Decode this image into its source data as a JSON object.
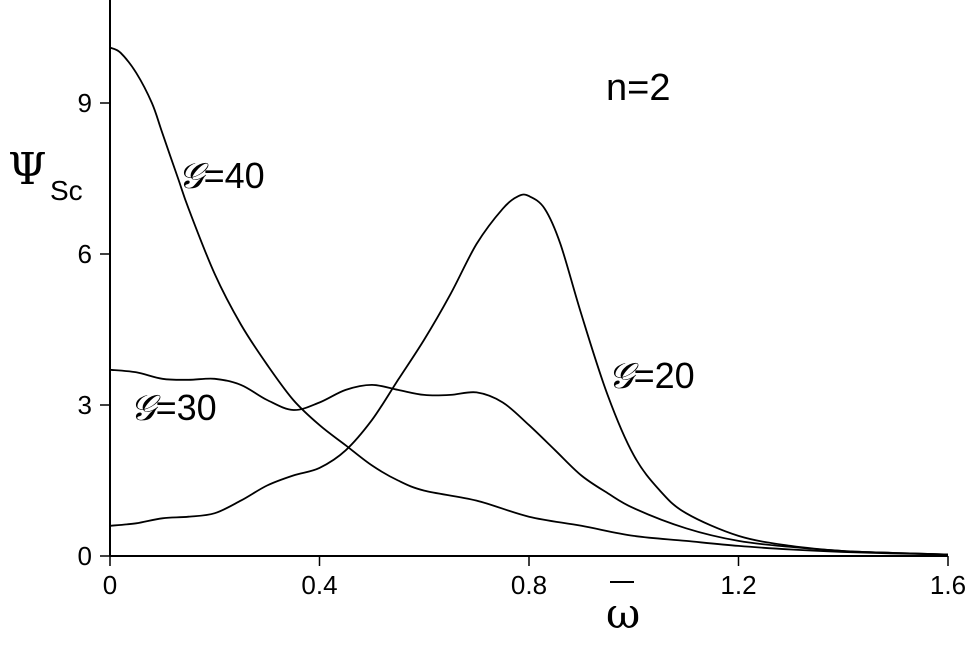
{
  "chart_data": {
    "type": "line",
    "xlabel": "ω",
    "ylabel_main": "Ψ",
    "ylabel_sub": "Sc",
    "annotation": "n=2",
    "xlim": [
      0,
      1.6
    ],
    "ylim": [
      0,
      11
    ],
    "xticks": [
      {
        "v": 0,
        "label": "0"
      },
      {
        "v": 0.4,
        "label": "0.4"
      },
      {
        "v": 0.8,
        "label": "0.8"
      },
      {
        "v": 1.2,
        "label": "1.2"
      },
      {
        "v": 1.6,
        "label": "1.6"
      }
    ],
    "yticks": [
      {
        "v": 0,
        "label": "0"
      },
      {
        "v": 3,
        "label": "3"
      },
      {
        "v": 6,
        "label": "6"
      },
      {
        "v": 9,
        "label": "9"
      }
    ],
    "series": [
      {
        "name": "G=40",
        "label_g": "𝒢",
        "label_val": "=40",
        "points": [
          [
            0,
            10.1
          ],
          [
            0.02,
            10.0
          ],
          [
            0.05,
            9.6
          ],
          [
            0.08,
            9.0
          ],
          [
            0.1,
            8.4
          ],
          [
            0.13,
            7.5
          ],
          [
            0.15,
            6.9
          ],
          [
            0.2,
            5.6
          ],
          [
            0.25,
            4.6
          ],
          [
            0.3,
            3.8
          ],
          [
            0.35,
            3.1
          ],
          [
            0.4,
            2.6
          ],
          [
            0.45,
            2.2
          ],
          [
            0.5,
            1.8
          ],
          [
            0.55,
            1.5
          ],
          [
            0.6,
            1.3
          ],
          [
            0.7,
            1.1
          ],
          [
            0.8,
            0.78
          ],
          [
            0.9,
            0.6
          ],
          [
            1.0,
            0.4
          ],
          [
            1.1,
            0.3
          ],
          [
            1.2,
            0.2
          ],
          [
            1.3,
            0.13
          ],
          [
            1.4,
            0.08
          ],
          [
            1.5,
            0.05
          ],
          [
            1.6,
            0.03
          ]
        ]
      },
      {
        "name": "G=30",
        "label_g": "𝒢",
        "label_val": "=30",
        "points": [
          [
            0,
            3.7
          ],
          [
            0.05,
            3.65
          ],
          [
            0.1,
            3.52
          ],
          [
            0.15,
            3.5
          ],
          [
            0.2,
            3.52
          ],
          [
            0.25,
            3.4
          ],
          [
            0.3,
            3.1
          ],
          [
            0.35,
            2.9
          ],
          [
            0.4,
            3.05
          ],
          [
            0.45,
            3.3
          ],
          [
            0.5,
            3.4
          ],
          [
            0.55,
            3.3
          ],
          [
            0.6,
            3.2
          ],
          [
            0.65,
            3.2
          ],
          [
            0.7,
            3.25
          ],
          [
            0.75,
            3.05
          ],
          [
            0.8,
            2.6
          ],
          [
            0.85,
            2.1
          ],
          [
            0.9,
            1.6
          ],
          [
            0.95,
            1.25
          ],
          [
            1.0,
            0.95
          ],
          [
            1.1,
            0.55
          ],
          [
            1.2,
            0.3
          ],
          [
            1.3,
            0.18
          ],
          [
            1.4,
            0.1
          ],
          [
            1.5,
            0.06
          ],
          [
            1.6,
            0.03
          ]
        ]
      },
      {
        "name": "G=20",
        "label_g": "𝒢",
        "label_val": "=20",
        "points": [
          [
            0,
            0.6
          ],
          [
            0.05,
            0.65
          ],
          [
            0.1,
            0.75
          ],
          [
            0.15,
            0.78
          ],
          [
            0.2,
            0.85
          ],
          [
            0.25,
            1.1
          ],
          [
            0.3,
            1.4
          ],
          [
            0.35,
            1.6
          ],
          [
            0.4,
            1.75
          ],
          [
            0.45,
            2.1
          ],
          [
            0.5,
            2.7
          ],
          [
            0.55,
            3.5
          ],
          [
            0.6,
            4.3
          ],
          [
            0.65,
            5.2
          ],
          [
            0.7,
            6.2
          ],
          [
            0.75,
            6.9
          ],
          [
            0.78,
            7.15
          ],
          [
            0.8,
            7.15
          ],
          [
            0.83,
            6.9
          ],
          [
            0.86,
            6.2
          ],
          [
            0.9,
            4.8
          ],
          [
            0.95,
            3.2
          ],
          [
            1.0,
            2.0
          ],
          [
            1.05,
            1.3
          ],
          [
            1.1,
            0.85
          ],
          [
            1.2,
            0.4
          ],
          [
            1.3,
            0.2
          ],
          [
            1.4,
            0.1
          ],
          [
            1.5,
            0.06
          ],
          [
            1.6,
            0.03
          ]
        ]
      }
    ]
  }
}
